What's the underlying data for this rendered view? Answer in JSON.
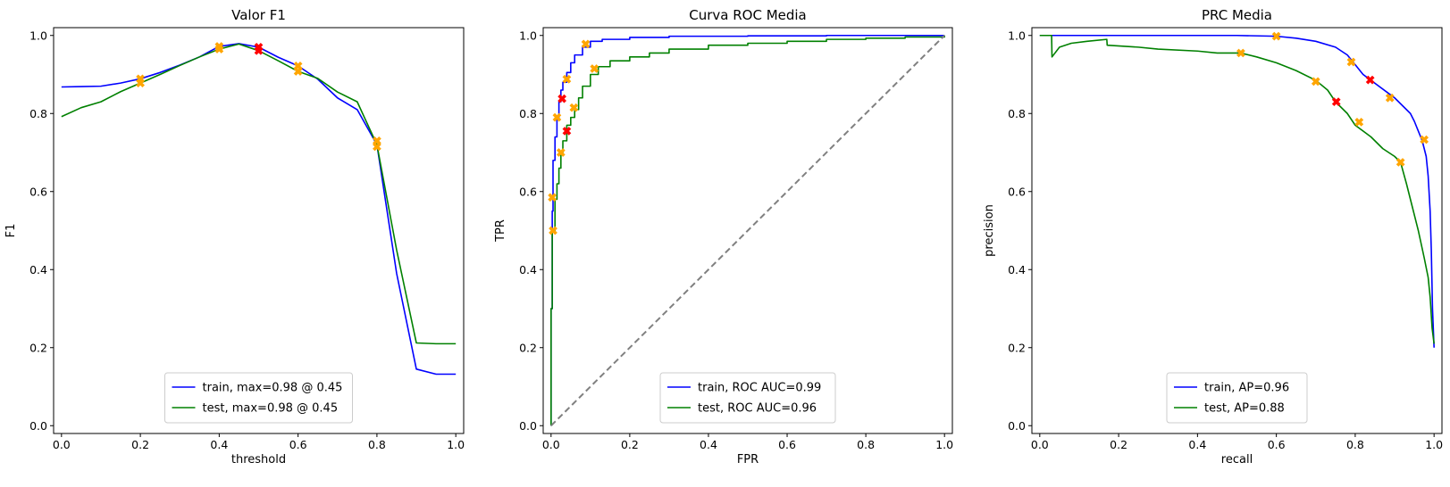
{
  "chart_data": [
    {
      "type": "line",
      "title": "Valor F1",
      "xlabel": "threshold",
      "ylabel": "F1",
      "xlim": [
        -0.02,
        1.02
      ],
      "ylim": [
        -0.02,
        1.02
      ],
      "xticks": [
        "0.0",
        "0.2",
        "0.4",
        "0.6",
        "0.8",
        "1.0"
      ],
      "yticks": [
        "0.0",
        "0.2",
        "0.4",
        "0.6",
        "0.8",
        "1.0"
      ],
      "legend_position": "lower center",
      "series": [
        {
          "name": "train, max=0.98 @ 0.45",
          "color": "#0000ff",
          "x": [
            0.0,
            0.05,
            0.1,
            0.15,
            0.2,
            0.25,
            0.3,
            0.35,
            0.4,
            0.45,
            0.5,
            0.55,
            0.6,
            0.65,
            0.7,
            0.75,
            0.8,
            0.85,
            0.9,
            0.95,
            1.0
          ],
          "y": [
            0.868,
            0.869,
            0.87,
            0.878,
            0.889,
            0.905,
            0.924,
            0.945,
            0.972,
            0.979,
            0.97,
            0.944,
            0.922,
            0.888,
            0.84,
            0.81,
            0.72,
            0.39,
            0.145,
            0.132,
            0.132
          ]
        },
        {
          "name": "test, max=0.98 @ 0.45",
          "color": "#008000",
          "x": [
            0.0,
            0.05,
            0.1,
            0.15,
            0.2,
            0.25,
            0.3,
            0.35,
            0.4,
            0.45,
            0.5,
            0.55,
            0.6,
            0.65,
            0.7,
            0.75,
            0.8,
            0.85,
            0.9,
            0.95,
            1.0
          ],
          "y": [
            0.792,
            0.815,
            0.83,
            0.856,
            0.878,
            0.9,
            0.923,
            0.945,
            0.965,
            0.978,
            0.961,
            0.935,
            0.908,
            0.89,
            0.855,
            0.83,
            0.72,
            0.45,
            0.212,
            0.21,
            0.21
          ]
        }
      ],
      "markers": [
        {
          "color": "#ffa500",
          "x": 0.2,
          "y": 0.889
        },
        {
          "color": "#ffa500",
          "x": 0.2,
          "y": 0.878
        },
        {
          "color": "#ffa500",
          "x": 0.4,
          "y": 0.972
        },
        {
          "color": "#ffa500",
          "x": 0.4,
          "y": 0.965
        },
        {
          "color": "#ff0000",
          "x": 0.5,
          "y": 0.97
        },
        {
          "color": "#ff0000",
          "x": 0.5,
          "y": 0.961
        },
        {
          "color": "#ffa500",
          "x": 0.6,
          "y": 0.922
        },
        {
          "color": "#ffa500",
          "x": 0.6,
          "y": 0.908
        },
        {
          "color": "#ffa500",
          "x": 0.8,
          "y": 0.73
        },
        {
          "color": "#ffa500",
          "x": 0.8,
          "y": 0.715
        }
      ]
    },
    {
      "type": "line",
      "title": "Curva ROC Media",
      "xlabel": "FPR",
      "ylabel": "TPR",
      "xlim": [
        -0.02,
        1.02
      ],
      "ylim": [
        -0.02,
        1.02
      ],
      "xticks": [
        "0.0",
        "0.2",
        "0.4",
        "0.6",
        "0.8",
        "1.0"
      ],
      "yticks": [
        "0.0",
        "0.2",
        "0.4",
        "0.6",
        "0.8",
        "1.0"
      ],
      "legend_position": "lower center",
      "series": [
        {
          "name": "train, ROC AUC=0.99",
          "color": "#0000ff",
          "step": true,
          "x": [
            0.0,
            0.0,
            0.003,
            0.005,
            0.01,
            0.015,
            0.02,
            0.025,
            0.03,
            0.04,
            0.05,
            0.06,
            0.08,
            0.1,
            0.13,
            0.2,
            0.3,
            0.5,
            0.7,
            1.0
          ],
          "y": [
            0.0,
            0.3,
            0.55,
            0.68,
            0.74,
            0.79,
            0.83,
            0.86,
            0.88,
            0.905,
            0.93,
            0.95,
            0.97,
            0.985,
            0.99,
            0.995,
            0.998,
            0.999,
            1.0,
            1.0
          ]
        },
        {
          "name": "test, ROC AUC=0.96",
          "color": "#008000",
          "step": true,
          "x": [
            0.0,
            0.0,
            0.003,
            0.01,
            0.015,
            0.02,
            0.025,
            0.03,
            0.04,
            0.05,
            0.06,
            0.07,
            0.08,
            0.1,
            0.12,
            0.15,
            0.2,
            0.25,
            0.3,
            0.4,
            0.5,
            0.6,
            0.7,
            0.8,
            0.9,
            1.0
          ],
          "y": [
            0.0,
            0.3,
            0.5,
            0.58,
            0.62,
            0.66,
            0.7,
            0.73,
            0.77,
            0.79,
            0.81,
            0.84,
            0.87,
            0.9,
            0.92,
            0.935,
            0.945,
            0.955,
            0.965,
            0.975,
            0.98,
            0.985,
            0.99,
            0.993,
            0.996,
            1.0
          ]
        },
        {
          "name": "",
          "color": "#808080",
          "dashed": true,
          "x": [
            0.0,
            1.0
          ],
          "y": [
            0.0,
            1.0
          ]
        }
      ],
      "markers": [
        {
          "color": "#ffa500",
          "x": 0.003,
          "y": 0.585
        },
        {
          "color": "#ffa500",
          "x": 0.005,
          "y": 0.5
        },
        {
          "color": "#ffa500",
          "x": 0.015,
          "y": 0.79
        },
        {
          "color": "#ffa500",
          "x": 0.025,
          "y": 0.7
        },
        {
          "color": "#ff0000",
          "x": 0.028,
          "y": 0.838
        },
        {
          "color": "#ffa500",
          "x": 0.04,
          "y": 0.888
        },
        {
          "color": "#ff0000",
          "x": 0.04,
          "y": 0.755
        },
        {
          "color": "#ffa500",
          "x": 0.058,
          "y": 0.815
        },
        {
          "color": "#ffa500",
          "x": 0.088,
          "y": 0.978
        },
        {
          "color": "#ffa500",
          "x": 0.11,
          "y": 0.915
        }
      ]
    },
    {
      "type": "line",
      "title": "PRC Media",
      "xlabel": "recall",
      "ylabel": "precision",
      "xlim": [
        -0.02,
        1.02
      ],
      "ylim": [
        -0.02,
        1.02
      ],
      "xticks": [
        "0.0",
        "0.2",
        "0.4",
        "0.6",
        "0.8",
        "1.0"
      ],
      "yticks": [
        "0.0",
        "0.2",
        "0.4",
        "0.6",
        "0.8",
        "1.0"
      ],
      "legend_position": "lower center",
      "series": [
        {
          "name": "train, AP=0.96",
          "color": "#0000ff",
          "x": [
            0.0,
            0.1,
            0.2,
            0.3,
            0.4,
            0.5,
            0.6,
            0.65,
            0.7,
            0.75,
            0.78,
            0.8,
            0.82,
            0.84,
            0.86,
            0.88,
            0.9,
            0.92,
            0.94,
            0.95,
            0.96,
            0.97,
            0.98,
            0.985,
            0.99,
            0.993,
            0.996,
            1.0
          ],
          "y": [
            1.0,
            1.0,
            1.0,
            1.0,
            1.0,
            1.0,
            0.998,
            0.993,
            0.985,
            0.97,
            0.95,
            0.925,
            0.9,
            0.885,
            0.87,
            0.855,
            0.84,
            0.82,
            0.8,
            0.78,
            0.755,
            0.73,
            0.69,
            0.64,
            0.55,
            0.45,
            0.3,
            0.2
          ]
        },
        {
          "name": "test, AP=0.88",
          "color": "#008000",
          "x": [
            0.0,
            0.03,
            0.031,
            0.05,
            0.08,
            0.12,
            0.17,
            0.171,
            0.25,
            0.3,
            0.4,
            0.45,
            0.51,
            0.55,
            0.6,
            0.65,
            0.7,
            0.73,
            0.75,
            0.78,
            0.8,
            0.84,
            0.87,
            0.9,
            0.915,
            0.93,
            0.945,
            0.96,
            0.975,
            0.985,
            0.99,
            0.995,
            1.0
          ],
          "y": [
            1.0,
            1.0,
            0.945,
            0.97,
            0.98,
            0.985,
            0.99,
            0.975,
            0.97,
            0.965,
            0.96,
            0.955,
            0.955,
            0.945,
            0.93,
            0.91,
            0.885,
            0.86,
            0.83,
            0.8,
            0.77,
            0.74,
            0.71,
            0.69,
            0.675,
            0.62,
            0.56,
            0.5,
            0.43,
            0.38,
            0.33,
            0.25,
            0.21
          ]
        }
      ],
      "markers": [
        {
          "color": "#ffa500",
          "x": 0.6,
          "y": 0.998
        },
        {
          "color": "#ffa500",
          "x": 0.79,
          "y": 0.932
        },
        {
          "color": "#ff0000",
          "x": 0.838,
          "y": 0.886
        },
        {
          "color": "#ffa500",
          "x": 0.888,
          "y": 0.84
        },
        {
          "color": "#ffa500",
          "x": 0.975,
          "y": 0.733
        },
        {
          "color": "#ffa500",
          "x": 0.51,
          "y": 0.955
        },
        {
          "color": "#ffa500",
          "x": 0.7,
          "y": 0.882
        },
        {
          "color": "#ff0000",
          "x": 0.752,
          "y": 0.83
        },
        {
          "color": "#ffa500",
          "x": 0.81,
          "y": 0.778
        },
        {
          "color": "#ffa500",
          "x": 0.915,
          "y": 0.675
        }
      ]
    }
  ]
}
